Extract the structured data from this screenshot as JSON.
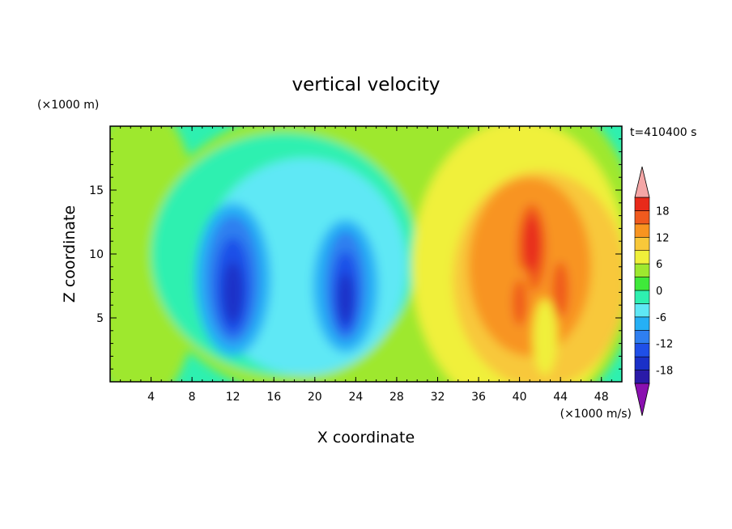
{
  "chart_data": {
    "type": "heatmap",
    "title": "vertical velocity",
    "xlabel": "X coordinate",
    "ylabel": "Z coordinate",
    "x_unit": "(×1000 m/s)",
    "y_unit": "(×1000 m)",
    "time_label": "t=410400 s",
    "xlim": [
      0,
      50
    ],
    "ylim": [
      0,
      20
    ],
    "x_ticks": [
      4,
      8,
      12,
      16,
      20,
      24,
      28,
      32,
      36,
      40,
      44,
      48
    ],
    "y_ticks": [
      5,
      10,
      15
    ],
    "colorbar": {
      "levels": [
        -21,
        -18,
        -15,
        -12,
        -9,
        -6,
        -3,
        0,
        3,
        6,
        9,
        12,
        15,
        18,
        21
      ],
      "labels": [
        -18,
        -12,
        -6,
        0,
        6,
        12,
        18
      ],
      "colors": [
        "#5b1a9c",
        "#2a1aa8",
        "#1a30c8",
        "#1f4fe8",
        "#2f7ff0",
        "#25b0f5",
        "#5fe8f5",
        "#2ef0b0",
        "#3fe93a",
        "#9ee82f",
        "#f0f03a",
        "#f8c83a",
        "#f89420",
        "#f05a1e",
        "#e82a1a",
        "#c01010"
      ],
      "under_color": "#8a10b0",
      "over_color": "#f4a6a6"
    },
    "features": [
      {
        "name": "downdraft west",
        "x": 12,
        "z": 8,
        "value": -13
      },
      {
        "name": "downdraft center",
        "x": 23,
        "z": 7.5,
        "value": -11
      },
      {
        "name": "updraft",
        "x": 41,
        "z": 10.5,
        "value": 15
      },
      {
        "name": "updraft",
        "x": 44,
        "z": 7,
        "value": 12
      },
      {
        "name": "updraft",
        "x": 40,
        "z": 6,
        "value": 12
      }
    ]
  }
}
